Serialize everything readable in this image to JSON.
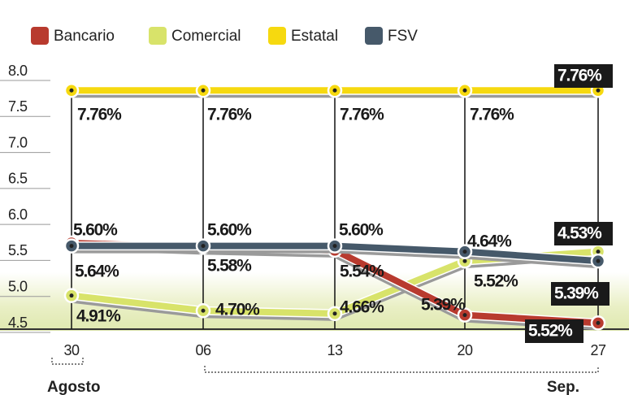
{
  "chart_data": {
    "type": "line",
    "categories": [
      "30",
      "06",
      "13",
      "20",
      "27"
    ],
    "x_groups": [
      "Agosto",
      "Sep."
    ],
    "ylim": [
      4.5,
      8.0
    ],
    "yticks": [
      {
        "value": 8,
        "label": "8.0"
      },
      7.5,
      {
        "value": 7,
        "label": "7.0"
      },
      6.5,
      {
        "value": 6,
        "label": "6.0"
      },
      5.5,
      {
        "value": 5,
        "label": "5.0"
      },
      4.5
    ],
    "series": [
      {
        "name": "Bancario",
        "color": "#b83a2e",
        "values": [
          5.64,
          5.58,
          5.54,
          4.64,
          4.53
        ],
        "value_labels": [
          "5.64%",
          "5.58%",
          "5.54%",
          "4.64%",
          "4.53%"
        ]
      },
      {
        "name": "Comercial",
        "color": "#d8e36a",
        "values": [
          4.91,
          4.7,
          4.66,
          5.39,
          5.52
        ],
        "value_labels": [
          "4.91%",
          "4.70%",
          "4.66%",
          "5.39%",
          "5.52%"
        ]
      },
      {
        "name": "Estatal",
        "color": "#f6d90f",
        "values": [
          7.76,
          7.76,
          7.76,
          7.76,
          7.76
        ],
        "value_labels": [
          "7.76%",
          "7.76%",
          "7.76%",
          "7.76%",
          "7.76%"
        ]
      },
      {
        "name": "FSV",
        "color": "#46596a",
        "values": [
          5.6,
          5.6,
          5.6,
          5.52,
          5.39
        ],
        "value_labels": [
          "5.60%",
          "5.60%",
          "5.60%",
          "5.52%",
          "5.39%"
        ]
      }
    ]
  }
}
